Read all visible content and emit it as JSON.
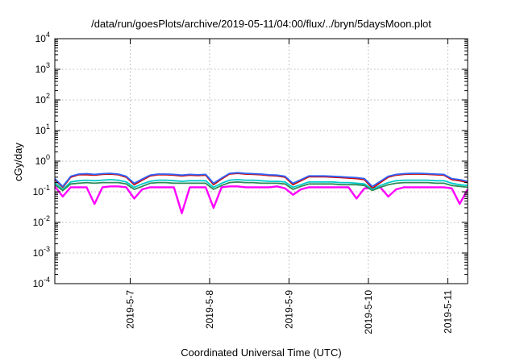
{
  "chart_data": {
    "type": "line",
    "title": "/data/run/goesPlots/archive/2019-05-11/04:00/flux/../bryn/5daysMoon.plot",
    "xlabel": "Coordinated Universal Time (UTC)",
    "ylabel": "cGy/day",
    "yscale": "log",
    "ylim": [
      0.0001,
      10000
    ],
    "xlim": [
      -0.95,
      4.25
    ],
    "grid": true,
    "y_ticks": [
      {
        "base": "10",
        "exp": "-4",
        "value": 0.0001
      },
      {
        "base": "10",
        "exp": "-3",
        "value": 0.001
      },
      {
        "base": "10",
        "exp": "-2",
        "value": 0.01
      },
      {
        "base": "10",
        "exp": "-1",
        "value": 0.1
      },
      {
        "base": "10",
        "exp": "0",
        "value": 1
      },
      {
        "base": "10",
        "exp": "1",
        "value": 10
      },
      {
        "base": "10",
        "exp": "2",
        "value": 100
      },
      {
        "base": "10",
        "exp": "3",
        "value": 1000
      },
      {
        "base": "10",
        "exp": "4",
        "value": 10000
      }
    ],
    "x_ticks": [
      {
        "label": "2019-5-7",
        "value": 0
      },
      {
        "label": "2019-5-8",
        "value": 1
      },
      {
        "label": "2019-5-9",
        "value": 2
      },
      {
        "label": "2019-5-10",
        "value": 3
      },
      {
        "label": "2019-5-11",
        "value": 4
      }
    ],
    "x": [
      -0.95,
      -0.85,
      -0.75,
      -0.65,
      -0.55,
      -0.45,
      -0.35,
      -0.25,
      -0.15,
      -0.05,
      0.05,
      0.15,
      0.25,
      0.35,
      0.45,
      0.55,
      0.65,
      0.75,
      0.85,
      0.95,
      1.05,
      1.15,
      1.25,
      1.35,
      1.45,
      1.55,
      1.65,
      1.75,
      1.85,
      1.95,
      2.05,
      2.15,
      2.25,
      2.35,
      2.45,
      2.55,
      2.65,
      2.75,
      2.85,
      2.95,
      3.05,
      3.15,
      3.25,
      3.35,
      3.45,
      3.55,
      3.65,
      3.75,
      3.85,
      3.95,
      4.05,
      4.15,
      4.25
    ],
    "series": [
      {
        "color": "#ff00ff",
        "values": [
          0.15,
          0.07,
          0.14,
          0.14,
          0.14,
          0.04,
          0.14,
          0.15,
          0.15,
          0.14,
          0.06,
          0.12,
          0.14,
          0.14,
          0.14,
          0.14,
          0.02,
          0.14,
          0.14,
          0.14,
          0.03,
          0.14,
          0.15,
          0.15,
          0.14,
          0.14,
          0.14,
          0.14,
          0.15,
          0.13,
          0.08,
          0.12,
          0.14,
          0.14,
          0.14,
          0.14,
          0.14,
          0.14,
          0.06,
          0.13,
          0.13,
          0.14,
          0.07,
          0.12,
          0.14,
          0.14,
          0.14,
          0.14,
          0.14,
          0.14,
          0.13,
          0.04,
          0.12
        ]
      },
      {
        "color": "#cc0000",
        "values": [
          0.25,
          0.14,
          0.3,
          0.36,
          0.36,
          0.35,
          0.37,
          0.38,
          0.36,
          0.3,
          0.17,
          0.24,
          0.33,
          0.36,
          0.36,
          0.35,
          0.33,
          0.35,
          0.34,
          0.35,
          0.17,
          0.26,
          0.38,
          0.4,
          0.38,
          0.37,
          0.36,
          0.34,
          0.33,
          0.3,
          0.17,
          0.23,
          0.31,
          0.31,
          0.31,
          0.3,
          0.29,
          0.28,
          0.27,
          0.25,
          0.13,
          0.2,
          0.3,
          0.35,
          0.37,
          0.38,
          0.38,
          0.37,
          0.36,
          0.35,
          0.25,
          0.23,
          0.2
        ]
      },
      {
        "color": "#3366ff",
        "values": [
          0.27,
          0.15,
          0.32,
          0.38,
          0.39,
          0.37,
          0.39,
          0.4,
          0.38,
          0.32,
          0.19,
          0.26,
          0.35,
          0.38,
          0.38,
          0.37,
          0.35,
          0.37,
          0.36,
          0.37,
          0.19,
          0.28,
          0.4,
          0.42,
          0.4,
          0.39,
          0.38,
          0.36,
          0.35,
          0.32,
          0.19,
          0.25,
          0.33,
          0.33,
          0.33,
          0.32,
          0.31,
          0.3,
          0.29,
          0.27,
          0.15,
          0.22,
          0.32,
          0.37,
          0.39,
          0.4,
          0.4,
          0.39,
          0.38,
          0.37,
          0.27,
          0.25,
          0.22
        ]
      },
      {
        "color": "#00cccc",
        "values": [
          0.2,
          0.12,
          0.21,
          0.23,
          0.24,
          0.23,
          0.24,
          0.25,
          0.24,
          0.21,
          0.14,
          0.18,
          0.22,
          0.24,
          0.24,
          0.23,
          0.22,
          0.23,
          0.23,
          0.23,
          0.14,
          0.19,
          0.24,
          0.25,
          0.24,
          0.24,
          0.23,
          0.22,
          0.22,
          0.21,
          0.14,
          0.17,
          0.21,
          0.21,
          0.21,
          0.21,
          0.2,
          0.2,
          0.19,
          0.18,
          0.12,
          0.16,
          0.2,
          0.23,
          0.24,
          0.24,
          0.24,
          0.24,
          0.23,
          0.23,
          0.19,
          0.17,
          0.16
        ]
      },
      {
        "color": "#2e8b57",
        "values": [
          0.17,
          0.11,
          0.18,
          0.19,
          0.2,
          0.19,
          0.2,
          0.2,
          0.2,
          0.18,
          0.12,
          0.15,
          0.19,
          0.2,
          0.2,
          0.19,
          0.19,
          0.19,
          0.19,
          0.19,
          0.12,
          0.16,
          0.2,
          0.21,
          0.2,
          0.2,
          0.19,
          0.19,
          0.19,
          0.18,
          0.12,
          0.15,
          0.18,
          0.18,
          0.18,
          0.18,
          0.17,
          0.17,
          0.17,
          0.16,
          0.11,
          0.14,
          0.17,
          0.19,
          0.2,
          0.2,
          0.2,
          0.2,
          0.19,
          0.19,
          0.16,
          0.15,
          0.14
        ]
      }
    ]
  }
}
